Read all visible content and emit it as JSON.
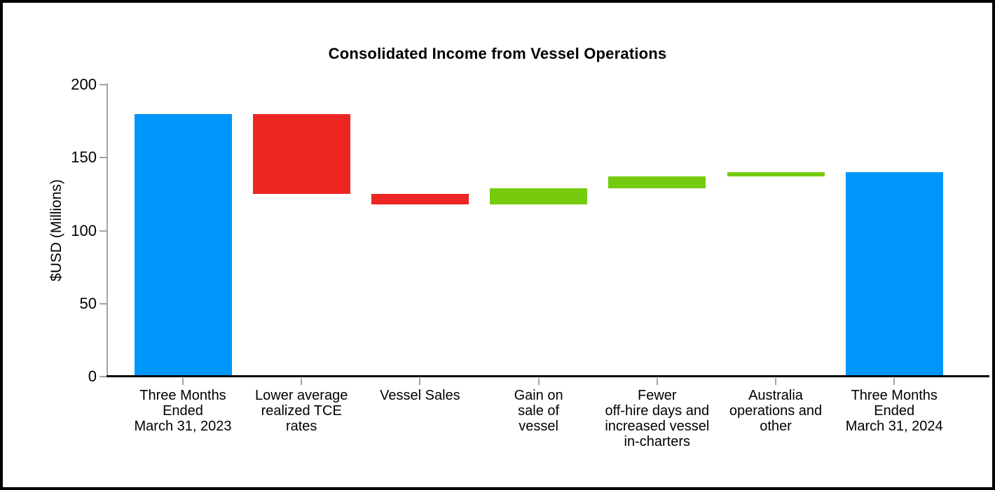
{
  "window": {
    "background": "#ffffff",
    "frame_border_color": "#000000"
  },
  "chart_data": {
    "type": "bar",
    "subtype": "waterfall",
    "title": "Consolidated Income from Vessel Operations",
    "xlabel": "",
    "ylabel": "$USD (Millions)",
    "ylim": [
      0,
      200
    ],
    "yticks": [
      0,
      50,
      100,
      150,
      200
    ],
    "grid": false,
    "legend": "none",
    "colors": {
      "total": "#0095f9",
      "decrease": "#ee2623",
      "increase": "#76cb0e",
      "axis": "#a3a3a3",
      "baseline": "#000000",
      "text": "#000000"
    },
    "bars": [
      {
        "label": "Three Months Ended March 31, 2023",
        "label_lines": [
          "Three Months",
          "Ended",
          "March 31, 2023"
        ],
        "kind": "total",
        "start": 0,
        "end": 180,
        "value": 180,
        "color": "#0095f9"
      },
      {
        "label": "Lower average realized TCE rates",
        "label_lines": [
          "Lower average",
          "realized TCE",
          "rates"
        ],
        "kind": "decrease",
        "start": 180,
        "end": 125,
        "value": -55,
        "color": "#ee2623"
      },
      {
        "label": "Vessel Sales",
        "label_lines": [
          "Vessel Sales"
        ],
        "kind": "decrease",
        "start": 125,
        "end": 118,
        "value": -7,
        "color": "#ee2623"
      },
      {
        "label": "Gain on sale of vessel",
        "label_lines": [
          "Gain on",
          "sale of",
          "vessel"
        ],
        "kind": "increase",
        "start": 118,
        "end": 129,
        "value": 11,
        "color": "#76cb0e"
      },
      {
        "label": "Fewer off-hire days and increased vessel in-charters",
        "label_lines": [
          "Fewer",
          "off-hire days and",
          "increased vessel",
          "in-charters"
        ],
        "kind": "increase",
        "start": 129,
        "end": 137,
        "value": 8,
        "color": "#76cb0e"
      },
      {
        "label": "Australia operations and other",
        "label_lines": [
          "Australia",
          "operations and",
          "other"
        ],
        "kind": "increase",
        "start": 137,
        "end": 140,
        "value": 3,
        "color": "#76cb0e"
      },
      {
        "label": "Three Months Ended March 31, 2024",
        "label_lines": [
          "Three Months",
          "Ended",
          "March 31, 2024"
        ],
        "kind": "total",
        "start": 0,
        "end": 140,
        "value": 140,
        "color": "#0095f9"
      }
    ]
  }
}
